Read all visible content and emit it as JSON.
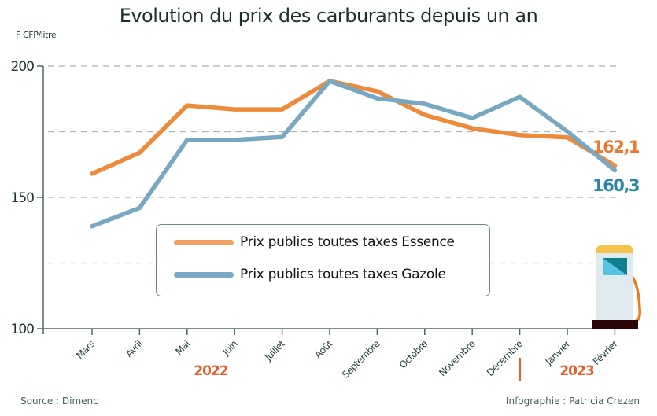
{
  "chart_data": {
    "type": "line",
    "title": "Evolution du prix des carburants depuis un an",
    "ylabel": "F CFP/litre",
    "xlabel": "",
    "ylim": [
      100,
      200
    ],
    "yticks": [
      100,
      150,
      200
    ],
    "grid_values": [
      125,
      150,
      175,
      200
    ],
    "grid": true,
    "categories": [
      "Mars",
      "Avril",
      "Mai",
      "Juin",
      "Juillet",
      "Août",
      "Septembre",
      "Octobre",
      "Novembre",
      "Décembre",
      "Janvier",
      "Février"
    ],
    "year_labels": [
      {
        "label": "2022",
        "color": "#e0622a"
      },
      {
        "label": "2023",
        "color": "#e0622a"
      }
    ],
    "series": [
      {
        "name": "Prix publics toutes taxes Essence",
        "color": "#ee8a3c",
        "legend_color": "#f3a063",
        "values": [
          159,
          167,
          185,
          183.5,
          183.5,
          194.3,
          190.4,
          181.4,
          176.3,
          173.7,
          172.8,
          162.1
        ],
        "end_label": "162,1",
        "end_label_color": "#e9792e"
      },
      {
        "name": "Prix publics toutes taxes Gazole",
        "color": "#76a8c3",
        "legend_color": "#7aa9c3",
        "values": [
          139,
          146,
          171.9,
          171.9,
          173,
          194.3,
          187.7,
          185.6,
          180.2,
          188.3,
          175.1,
          160.3
        ],
        "end_label": "160,3",
        "end_label_color": "#2a86a9"
      }
    ],
    "legend_position": "bottom-center"
  },
  "footer": {
    "source": "Source : Dimenc",
    "credit": "Infographie : Patricia Crezen"
  },
  "decor": {
    "pump_icon": "fuel-pump-icon"
  }
}
